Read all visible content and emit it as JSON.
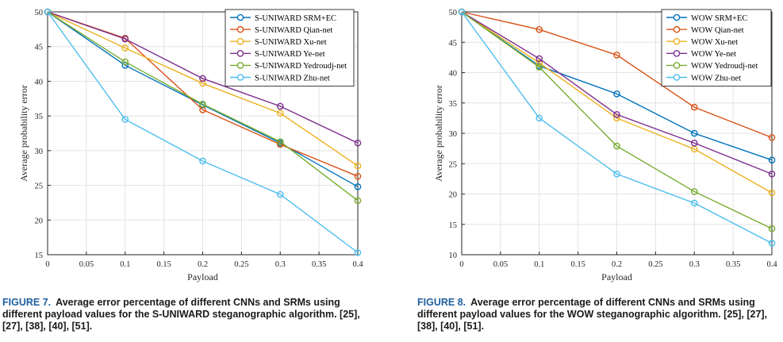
{
  "chart_data": [
    {
      "type": "line",
      "xlabel": "Payload",
      "ylabel": "Average probability error",
      "x": [
        0,
        0.1,
        0.2,
        0.3,
        0.4
      ],
      "xticks": [
        "0",
        "0.05",
        "0.1",
        "0.15",
        "0.2",
        "0.25",
        "0.3",
        "0.35",
        "0.4"
      ],
      "yticks": [
        "15",
        "20",
        "25",
        "30",
        "35",
        "40",
        "45",
        "50"
      ],
      "xlim": [
        0,
        0.4
      ],
      "ylim": [
        15,
        50
      ],
      "grid": true,
      "legend_position": "top-right",
      "series": [
        {
          "name": "S-UNIWARD SRM+EC",
          "color": "#0072BD",
          "values": [
            50,
            42.3,
            36.6,
            31.1,
            24.8
          ]
        },
        {
          "name": "S-UNIWARD Qian-net",
          "color": "#D95319",
          "values": [
            50,
            46.2,
            35.9,
            30.9,
            26.3
          ]
        },
        {
          "name": "S-UNIWARD Xu-net",
          "color": "#EDB120",
          "values": [
            50,
            44.8,
            39.7,
            35.4,
            27.8
          ]
        },
        {
          "name": "S-UNIWARD Ye-net",
          "color": "#7E2F8E",
          "values": [
            50,
            46.1,
            40.4,
            36.4,
            31.1
          ]
        },
        {
          "name": "S-UNIWARD Yedroudj-net",
          "color": "#77AC30",
          "values": [
            50,
            42.8,
            36.7,
            31.3,
            22.8
          ]
        },
        {
          "name": "S-UNIWARD Zhu-net",
          "color": "#4DBEEE",
          "values": [
            50,
            34.5,
            28.5,
            23.7,
            15.3
          ]
        }
      ]
    },
    {
      "type": "line",
      "xlabel": "Payload",
      "ylabel": "Average probability error",
      "x": [
        0,
        0.1,
        0.2,
        0.3,
        0.4
      ],
      "xticks": [
        "0",
        "0.05",
        "0.1",
        "0.15",
        "0.2",
        "0.25",
        "0.3",
        "0.35",
        "0.4"
      ],
      "yticks": [
        "10",
        "15",
        "20",
        "25",
        "30",
        "35",
        "40",
        "45",
        "50"
      ],
      "xlim": [
        0,
        0.4
      ],
      "ylim": [
        10,
        50
      ],
      "grid": true,
      "legend_position": "top-right",
      "series": [
        {
          "name": "WOW SRM+EC",
          "color": "#0072BD",
          "values": [
            50,
            41.1,
            36.5,
            30.0,
            25.6
          ]
        },
        {
          "name": "WOW Qian-net",
          "color": "#D95319",
          "values": [
            50,
            47.1,
            42.9,
            34.3,
            29.3
          ]
        },
        {
          "name": "WOW Xu-net",
          "color": "#EDB120",
          "values": [
            50,
            41.6,
            32.5,
            27.4,
            20.2
          ]
        },
        {
          "name": "WOW Ye-net",
          "color": "#7E2F8E",
          "values": [
            50,
            42.3,
            33.1,
            28.4,
            23.3
          ]
        },
        {
          "name": "WOW Yedroudj-net",
          "color": "#77AC30",
          "values": [
            50,
            40.9,
            27.9,
            20.4,
            14.3
          ]
        },
        {
          "name": "WOW Zhu-net",
          "color": "#4DBEEE",
          "values": [
            50,
            32.5,
            23.3,
            18.5,
            11.9
          ]
        }
      ]
    }
  ],
  "captions": [
    {
      "label": "FIGURE 7.",
      "text": "Average error percentage of different CNNs and SRMs using different payload values for the S-UNIWARD steganographic algorithm. [25], [27], [38], [40], [51]."
    },
    {
      "label": "FIGURE 8.",
      "text": "Average error percentage of different CNNs and SRMs using different payload values for the WOW steganographic algorithm. [25], [27], [38], [40], [51]."
    }
  ]
}
